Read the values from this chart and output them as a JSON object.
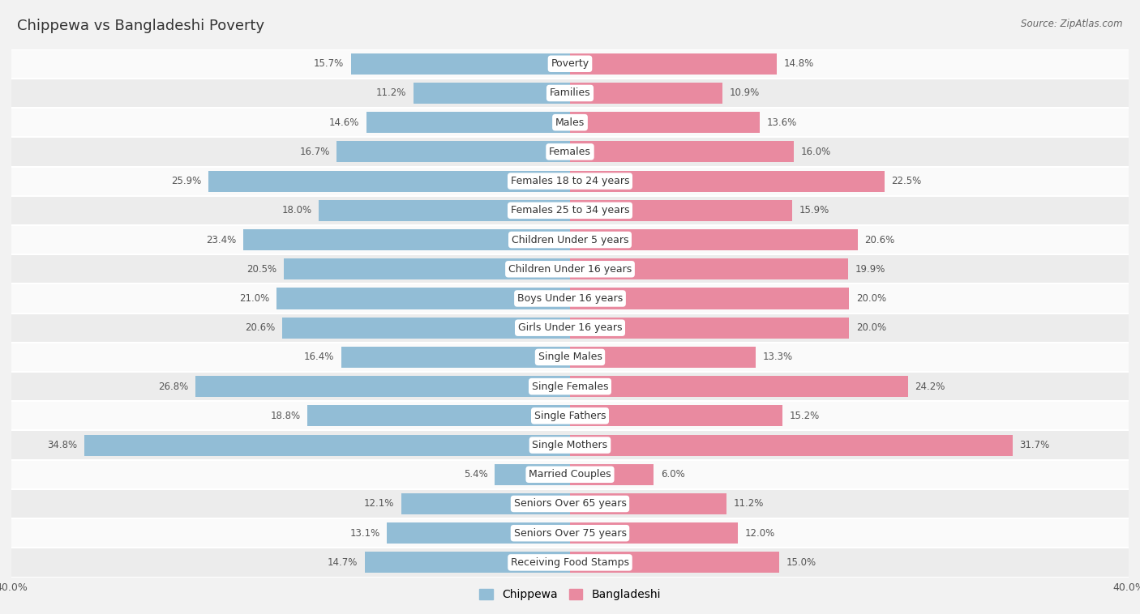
{
  "title": "Chippewa vs Bangladeshi Poverty",
  "source": "Source: ZipAtlas.com",
  "categories": [
    "Poverty",
    "Families",
    "Males",
    "Females",
    "Females 18 to 24 years",
    "Females 25 to 34 years",
    "Children Under 5 years",
    "Children Under 16 years",
    "Boys Under 16 years",
    "Girls Under 16 years",
    "Single Males",
    "Single Females",
    "Single Fathers",
    "Single Mothers",
    "Married Couples",
    "Seniors Over 65 years",
    "Seniors Over 75 years",
    "Receiving Food Stamps"
  ],
  "chippewa": [
    15.7,
    11.2,
    14.6,
    16.7,
    25.9,
    18.0,
    23.4,
    20.5,
    21.0,
    20.6,
    16.4,
    26.8,
    18.8,
    34.8,
    5.4,
    12.1,
    13.1,
    14.7
  ],
  "bangladeshi": [
    14.8,
    10.9,
    13.6,
    16.0,
    22.5,
    15.9,
    20.6,
    19.9,
    20.0,
    20.0,
    13.3,
    24.2,
    15.2,
    31.7,
    6.0,
    11.2,
    12.0,
    15.0
  ],
  "chippewa_color": "#92bdd6",
  "bangladeshi_color": "#e98aa0",
  "background_color": "#f2f2f2",
  "row_color_light": "#fafafa",
  "row_color_dark": "#ececec",
  "max_value": 40.0,
  "bar_height": 0.72,
  "title_fontsize": 13,
  "label_fontsize": 9,
  "value_fontsize": 8.5,
  "legend_fontsize": 10
}
